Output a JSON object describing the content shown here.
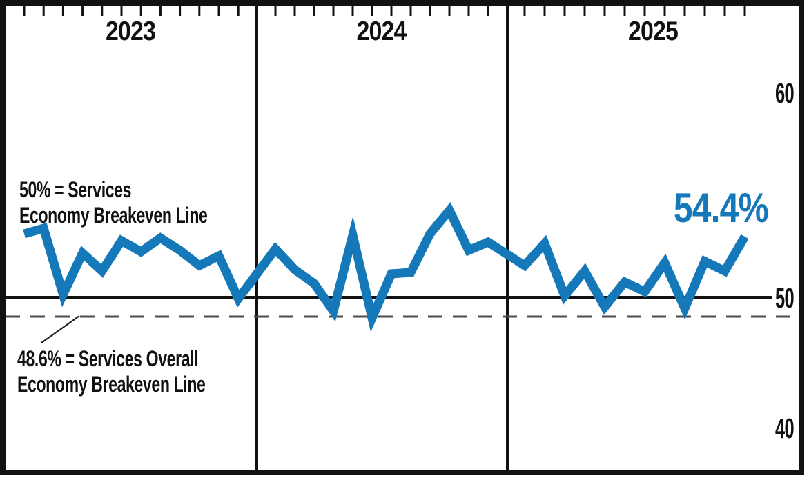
{
  "chart_data": {
    "type": "line",
    "title": "",
    "unit": "%",
    "line_color": "#1478B9",
    "x_structure": "three year panels, 12 unlabeled monthly tick marks per panel along the top edge",
    "years": [
      {
        "label": "2023",
        "values": [
          54.6,
          55.0,
          50.2,
          53.2,
          51.9,
          54.1,
          53.3,
          54.3,
          53.4,
          52.3,
          53.0,
          49.9
        ]
      },
      {
        "label": "2024",
        "values": [
          53.5,
          52.0,
          51.0,
          49.0,
          54.5,
          48.5,
          51.7,
          51.8,
          54.6,
          56.3,
          53.4,
          54.0
        ]
      },
      {
        "label": "2025",
        "values": [
          52.3,
          53.9,
          50.1,
          51.9,
          49.3,
          51.1,
          50.4,
          52.5,
          49.2,
          52.6,
          51.9,
          54.4
        ]
      }
    ],
    "latest": {
      "label": "54.4%",
      "value": 54.4
    },
    "y_axis": {
      "range": [
        40,
        60
      ],
      "ticks": [
        {
          "label": "60",
          "value": 60
        },
        {
          "label": "50",
          "value": 50
        },
        {
          "label": "40",
          "value": 40
        }
      ],
      "side": "right",
      "grid": "off"
    },
    "reference_lines": [
      {
        "value": 50.0,
        "style": "solid",
        "color": "#111111",
        "label_line1": "50% = Services",
        "label_line2": "Economy Breakeven Line"
      },
      {
        "value": 48.6,
        "style": "dashed",
        "color": "#4b4b4b",
        "label_line1": "48.6% = Services Overall",
        "label_line2": "Economy Breakeven Line"
      }
    ]
  }
}
